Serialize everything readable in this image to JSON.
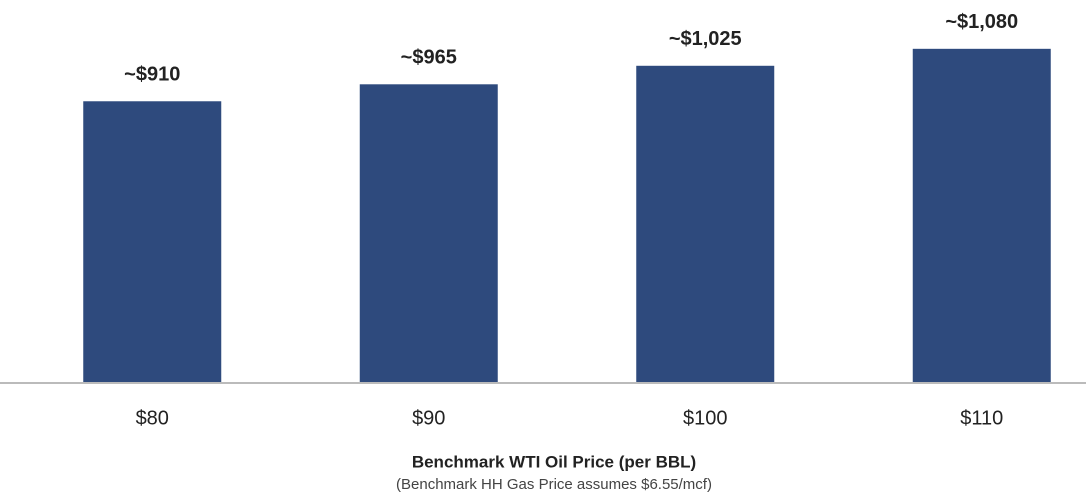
{
  "chart_data": {
    "type": "bar",
    "x_label": "Benchmark WTI Oil Price (per BBL)",
    "subtitle": "(Benchmark HH Gas Price assumes $6.55/mcf)",
    "categories": [
      "$80",
      "$90",
      "$100",
      "$110"
    ],
    "values": [
      910,
      965,
      1025,
      1080
    ],
    "value_labels": [
      "~$910",
      "~$965",
      "~$1,025",
      "~$1,080"
    ],
    "color": "#2e4a7d"
  }
}
